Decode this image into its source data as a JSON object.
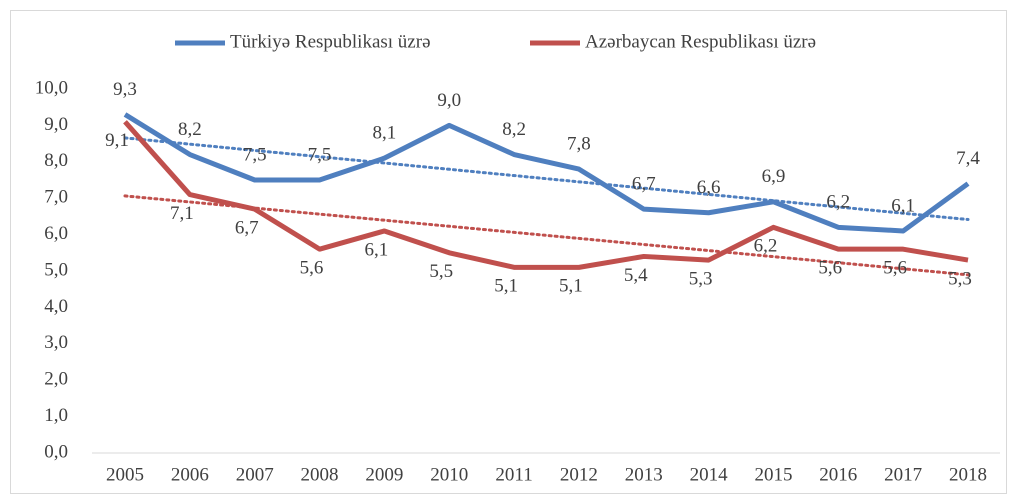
{
  "chart_data": {
    "type": "line",
    "categories": [
      "2005",
      "2006",
      "2007",
      "2008",
      "2009",
      "2010",
      "2011",
      "2012",
      "2013",
      "2014",
      "2015",
      "2016",
      "2017",
      "2018"
    ],
    "series": [
      {
        "name": "Türkiyə Respublikası üzrə",
        "color": "#4f7fbf",
        "values": [
          9.3,
          8.2,
          7.5,
          7.5,
          8.1,
          9.0,
          8.2,
          7.8,
          6.7,
          6.6,
          6.9,
          6.2,
          6.1,
          7.4
        ],
        "value_labels": [
          "9,3",
          "8,2",
          "7,5",
          "7,5",
          "8,1",
          "9,0",
          "8,2",
          "7,8",
          "6,7",
          "6,6",
          "6,9",
          "6,2",
          "6,1",
          "7,4"
        ]
      },
      {
        "name": "Azərbaycan Respublikası üzrə",
        "color": "#c0504d",
        "values": [
          9.1,
          7.1,
          6.7,
          5.6,
          6.1,
          5.5,
          5.1,
          5.1,
          5.4,
          5.3,
          6.2,
          5.6,
          5.6,
          5.3
        ],
        "value_labels": [
          "9,1",
          "7,1",
          "6,7",
          "5,6",
          "6,1",
          "5,5",
          "5,1",
          "5,1",
          "5,4",
          "5,3",
          "6,2",
          "5,6",
          "5,6",
          "5,3"
        ]
      }
    ],
    "ylim": [
      0,
      10
    ],
    "yticks": [
      {
        "value": 0,
        "label": "0,0"
      },
      {
        "value": 1,
        "label": "1,0"
      },
      {
        "value": 2,
        "label": "2,0"
      },
      {
        "value": 3,
        "label": "3,0"
      },
      {
        "value": 4,
        "label": "4,0"
      },
      {
        "value": 5,
        "label": "5,0"
      },
      {
        "value": 6,
        "label": "6,0"
      },
      {
        "value": 7,
        "label": "7,0"
      },
      {
        "value": 8,
        "label": "8,0"
      },
      {
        "value": 9,
        "label": "9,0"
      },
      {
        "value": 10,
        "label": "10,0"
      }
    ],
    "trendline": "linear",
    "legend": "top"
  }
}
